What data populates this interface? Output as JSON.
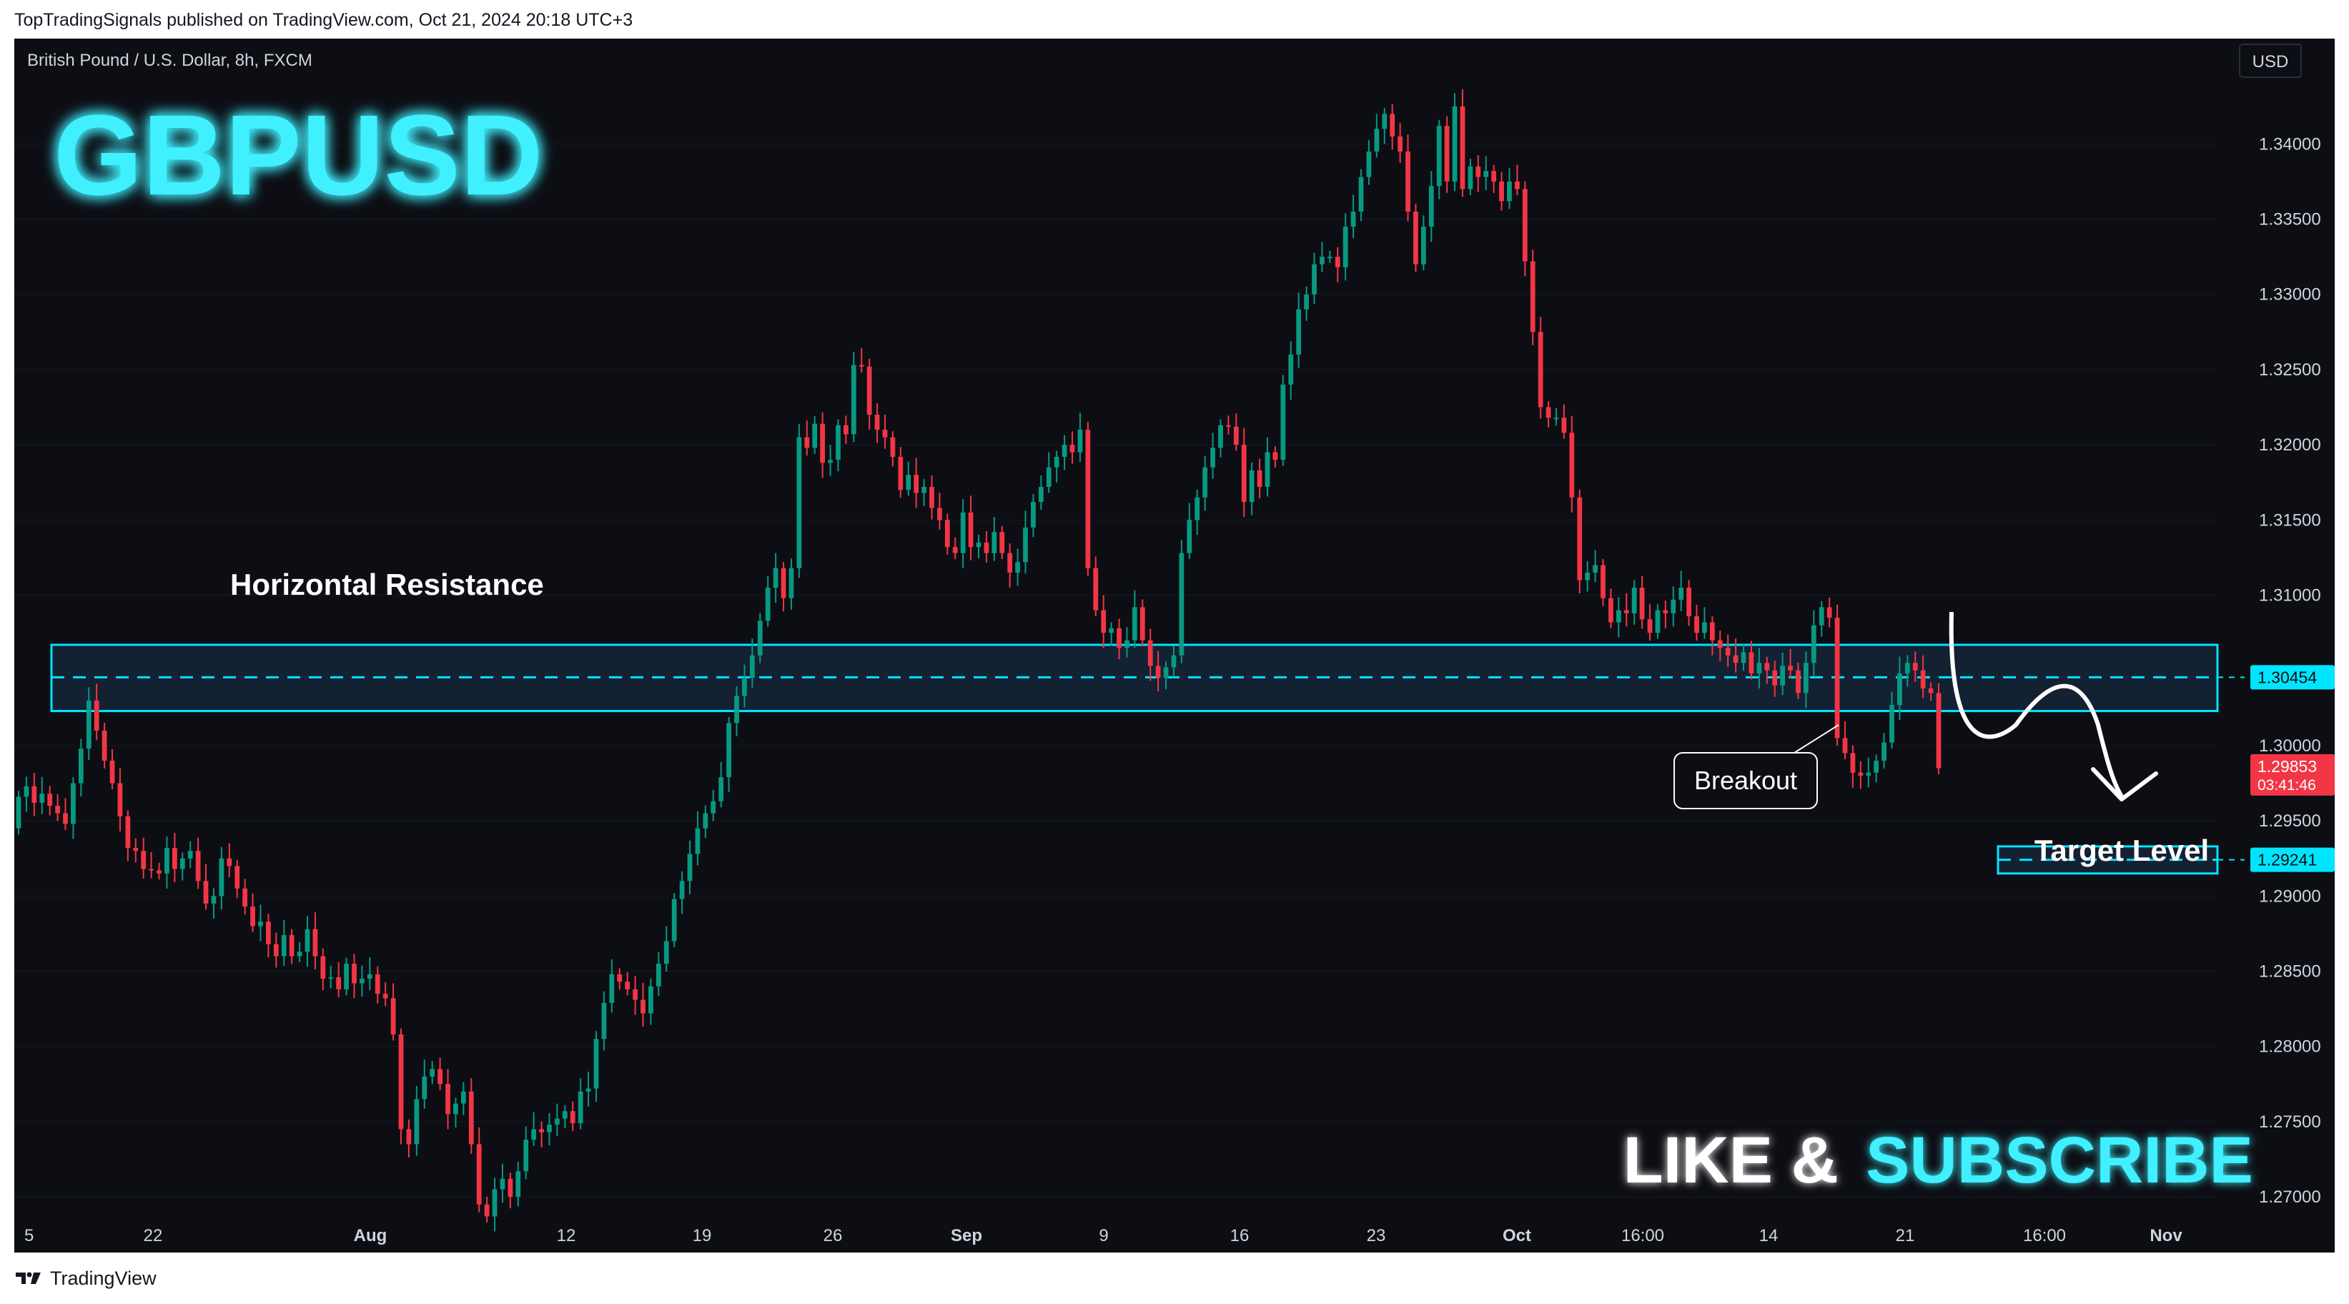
{
  "header": {
    "publisher_line": "TopTradingSignals published on TradingView.com, Oct 21, 2024 20:18 UTC+3"
  },
  "symbol_line": "British Pound / U.S. Dollar, 8h, FXCM",
  "title": "GBPUSD",
  "currency": "USD",
  "annotations": {
    "resistance_label": "Horizontal Resistance",
    "breakout_label": "Breakout",
    "target_label": "Target Level",
    "cta_like": "LIKE &",
    "cta_subscribe": "SUBSCRIBE"
  },
  "footer": {
    "brand": "TradingView"
  },
  "colors": {
    "bull": "#089981",
    "bear": "#f23645",
    "accent": "#00e5ff",
    "background": "#0d0e14"
  },
  "chart_data": {
    "type": "candlestick",
    "symbol": "GBPUSD",
    "timeframe": "8h",
    "x_tick_labels": [
      "5",
      "22",
      "Aug",
      "12",
      "19",
      "26",
      "Sep",
      "9",
      "16",
      "23",
      "Oct",
      "16:00",
      "14",
      "21",
      "16:00",
      "Nov"
    ],
    "y_tick_labels": [
      "1.34000",
      "1.33500",
      "1.33000",
      "1.32500",
      "1.32000",
      "1.31500",
      "1.31000",
      "1.30000",
      "1.29500",
      "1.29000",
      "1.28500",
      "1.28000",
      "1.27500",
      "1.27000"
    ],
    "ylim": [
      1.2645,
      1.3445
    ],
    "price_tags": [
      {
        "label": "1.30454",
        "value": 1.30454,
        "style": "accent"
      },
      {
        "label": "1.29853",
        "value": 1.29853,
        "sub": "03:41:46",
        "style": "bear"
      },
      {
        "label": "1.29241",
        "value": 1.29241,
        "style": "accent"
      }
    ],
    "zones": [
      {
        "name": "Horizontal Resistance",
        "low": 1.3023,
        "high": 1.3067,
        "mid": 1.30454
      },
      {
        "name": "Target Level",
        "low": 1.2915,
        "high": 1.2933,
        "mid": 1.29241
      }
    ],
    "closes": [
      1.2966,
      1.2973,
      1.2962,
      1.2968,
      1.296,
      1.2955,
      1.2948,
      1.2975,
      1.2998,
      1.303,
      1.301,
      1.299,
      1.2975,
      1.2953,
      1.2932,
      1.293,
      1.2918,
      1.2917,
      1.2915,
      1.2932,
      1.2918,
      1.2925,
      1.293,
      1.291,
      1.2895,
      1.29,
      1.2925,
      1.292,
      1.2905,
      1.2893,
      1.288,
      1.2883,
      1.2868,
      1.286,
      1.2874,
      1.286,
      1.2863,
      1.2878,
      1.286,
      1.2845,
      1.2846,
      1.2838,
      1.2855,
      1.2842,
      1.2845,
      1.2848,
      1.2835,
      1.2832,
      1.2808,
      1.2745,
      1.2735,
      1.2765,
      1.278,
      1.2785,
      1.2775,
      1.2755,
      1.2762,
      1.277,
      1.2735,
      1.2695,
      1.2687,
      1.2705,
      1.2712,
      1.27,
      1.2717,
      1.2738,
      1.2745,
      1.2743,
      1.2748,
      1.2752,
      1.2757,
      1.2749,
      1.277,
      1.2772,
      1.2805,
      1.2829,
      1.2848,
      1.2843,
      1.2838,
      1.2831,
      1.2822,
      1.284,
      1.2855,
      1.287,
      1.2898,
      1.291,
      1.2928,
      1.2945,
      1.2955,
      1.2963,
      1.2979,
      1.3015,
      1.3033,
      1.3045,
      1.306,
      1.3083,
      1.3105,
      1.3118,
      1.3098,
      1.3118,
      1.3205,
      1.3198,
      1.3214,
      1.3188,
      1.319,
      1.3213,
      1.3207,
      1.3253,
      1.3252,
      1.322,
      1.321,
      1.3205,
      1.3192,
      1.317,
      1.318,
      1.3168,
      1.3172,
      1.3158,
      1.315,
      1.3132,
      1.3128,
      1.3155,
      1.3132,
      1.3135,
      1.3128,
      1.3142,
      1.3128,
      1.3115,
      1.3122,
      1.3145,
      1.3162,
      1.3172,
      1.3185,
      1.3192,
      1.32,
      1.3195,
      1.321,
      1.3118,
      1.309,
      1.3075,
      1.3078,
      1.3065,
      1.307,
      1.3092,
      1.307,
      1.3053,
      1.3045,
      1.3052,
      1.306,
      1.3128,
      1.315,
      1.3165,
      1.3185,
      1.3198,
      1.3213,
      1.3212,
      1.32,
      1.3162,
      1.3183,
      1.3172,
      1.3195,
      1.319,
      1.324,
      1.326,
      1.329,
      1.33,
      1.332,
      1.3325,
      1.3325,
      1.3318,
      1.3345,
      1.3355,
      1.3378,
      1.3395,
      1.341,
      1.342,
      1.3405,
      1.3395,
      1.3355,
      1.332,
      1.3345,
      1.3372,
      1.3412,
      1.3375,
      1.3425,
      1.337,
      1.3385,
      1.3378,
      1.3382,
      1.3375,
      1.3362,
      1.3375,
      1.337,
      1.3322,
      1.3275,
      1.3225,
      1.3218,
      1.3218,
      1.3208,
      1.3165,
      1.311,
      1.3115,
      1.312,
      1.3098,
      1.3082,
      1.309,
      1.3088,
      1.3105,
      1.3084,
      1.3075,
      1.309,
      1.3088,
      1.3097,
      1.3105,
      1.3086,
      1.3075,
      1.3082,
      1.307,
      1.3065,
      1.306,
      1.3055,
      1.3062,
      1.3048,
      1.3055,
      1.305,
      1.304,
      1.3053,
      1.305,
      1.3035,
      1.3055,
      1.308,
      1.3092,
      1.3085,
      1.3005,
      1.2995,
      1.2982,
      1.298,
      1.2982,
      1.299,
      1.3002,
      1.3027,
      1.3048,
      1.3055,
      1.305,
      1.3038,
      1.3035,
      1.2985
    ]
  }
}
